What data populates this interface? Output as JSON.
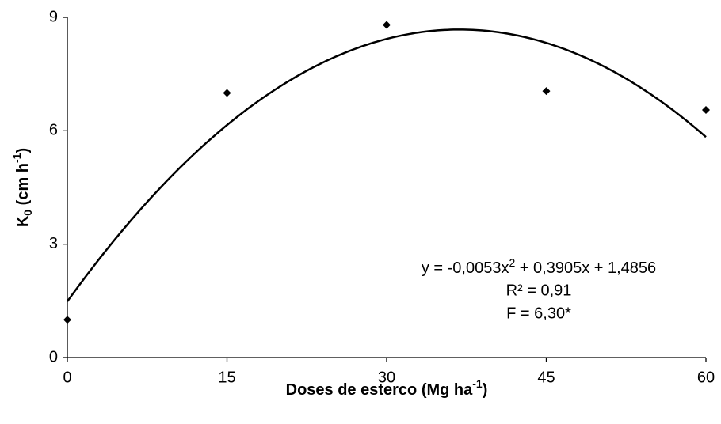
{
  "chart_data": {
    "type": "scatter",
    "x_label": [
      "Doses de esterco (Mg ha",
      "-1",
      ")"
    ],
    "y_label": [
      "K",
      "0",
      " (cm h",
      "-1",
      ")"
    ],
    "x": [
      0,
      15,
      30,
      45,
      60
    ],
    "values": [
      1.0,
      7.0,
      8.8,
      7.05,
      6.55
    ],
    "color": "#000000",
    "xlim": [
      0,
      60
    ],
    "xticks": [
      0,
      15,
      30,
      45,
      60
    ],
    "ylim": [
      0,
      9
    ],
    "yticks": [
      0,
      3,
      6,
      9
    ],
    "grid": false,
    "trendline": {
      "coefficients": [
        -0.0053,
        0.3905,
        1.4856
      ]
    },
    "annotation": {
      "equation": [
        "y = -0,0053x",
        "2",
        " + 0,3905x + 1,4856"
      ],
      "r_squared": "R² = 0,91",
      "f_test": "F = 6,30*"
    }
  }
}
